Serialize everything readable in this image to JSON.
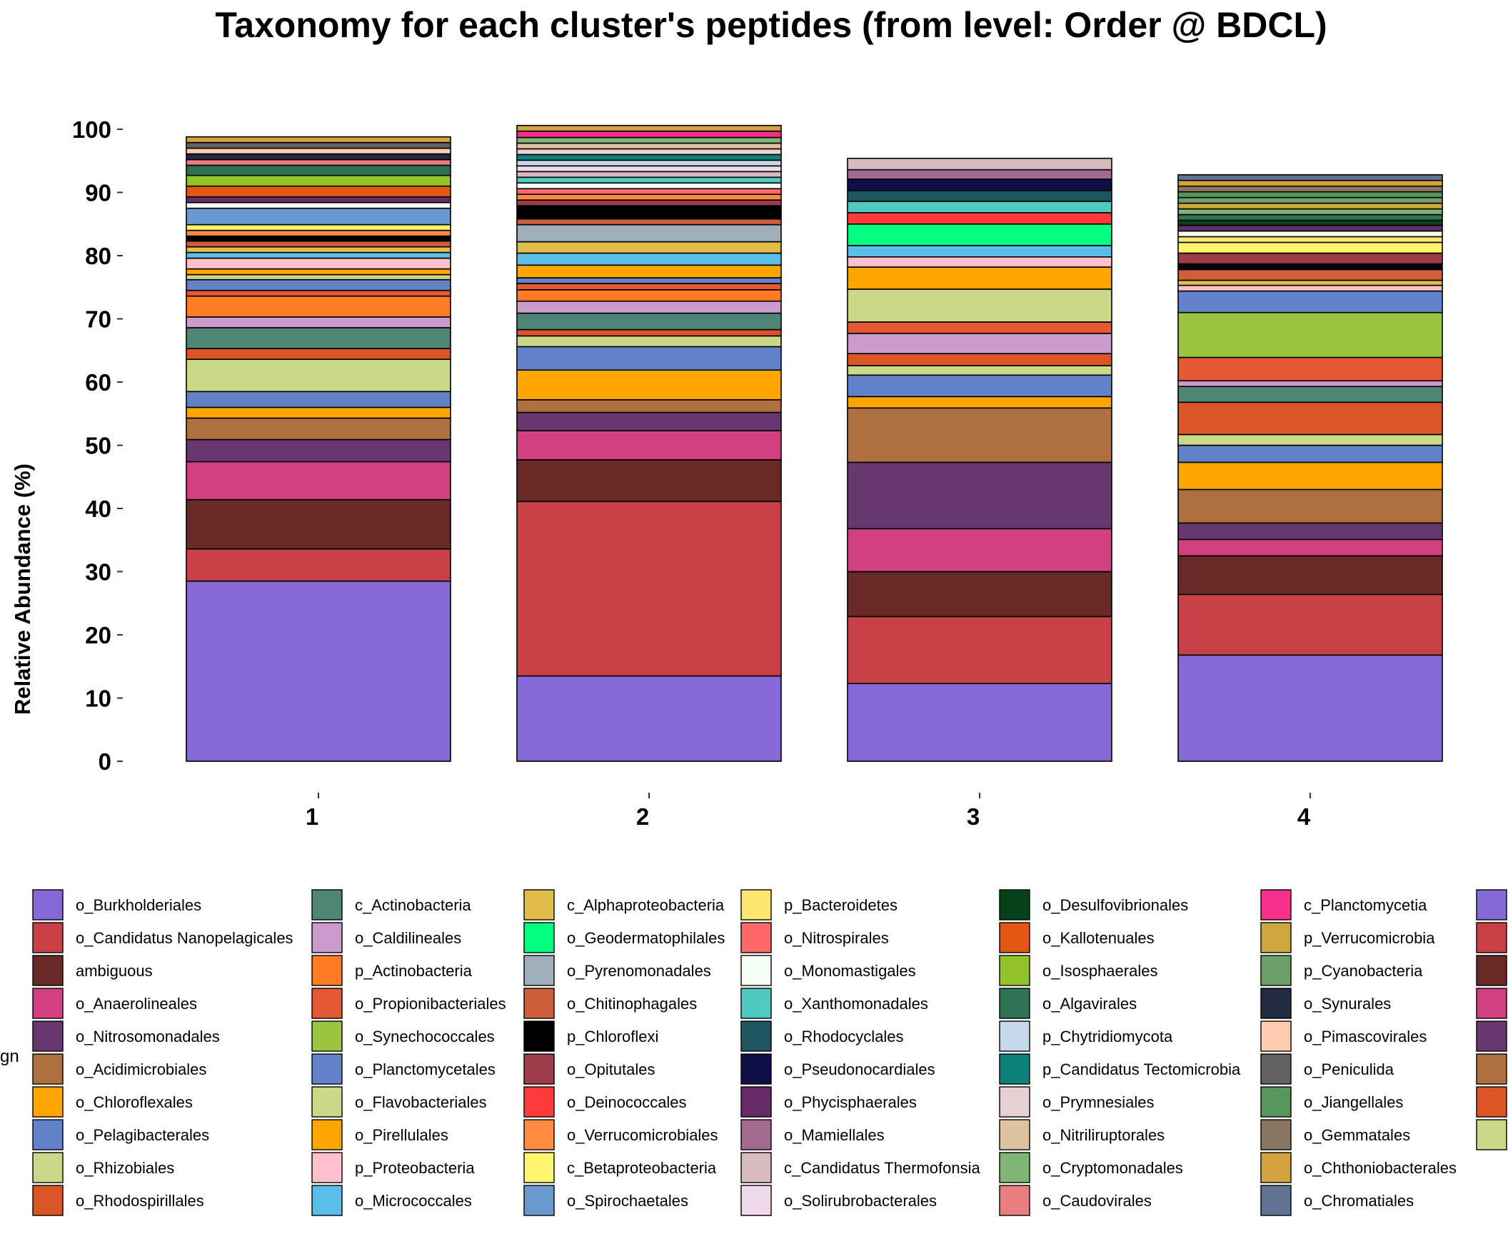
{
  "chart_data": {
    "type": "bar",
    "stacked": true,
    "title": "Taxonomy for each cluster's peptides (from level: Order @ BDCL)",
    "ylabel": "Relative Abundance (%)",
    "xlabel": "",
    "ylim": [
      0,
      100
    ],
    "yticks": [
      "0",
      "10",
      "20",
      "30",
      "40",
      "50",
      "60",
      "70",
      "80",
      "90",
      "100"
    ],
    "categories": [
      "1",
      "2",
      "3",
      "4"
    ],
    "legend_title_fragment": "gn",
    "legend_position": "bottom",
    "legend_labels": [
      "o_Burkholderiales",
      "o_Candidatus Nanopelagicales",
      "ambiguous",
      "o_Anaerolineales",
      "o_Nitrosomonadales",
      "o_Acidimicrobiales",
      "o_Chloroflexales",
      "o_Pelagibacterales",
      "o_Rhizobiales",
      "o_Rhodospirillales",
      "c_Actinobacteria",
      "o_Caldilineales",
      "p_Actinobacteria",
      "o_Propionibacteriales",
      "o_Synechococcales",
      "o_Planctomycetales",
      "o_Flavobacteriales",
      "o_Pirellulales",
      "p_Proteobacteria",
      "o_Micrococcales",
      "c_Alphaproteobacteria",
      "o_Geodermatophilales",
      "o_Pyrenomonadales",
      "o_Chitinophagales",
      "p_Chloroflexi",
      "o_Opitutales",
      "o_Deinococcales",
      "o_Verrucomicrobiales",
      "c_Betaproteobacteria",
      "o_Spirochaetales",
      "p_Bacteroidetes",
      "o_Nitrospirales",
      "o_Monomastigales",
      "o_Xanthomonadales",
      "o_Rhodocyclales",
      "o_Pseudonocardiales",
      "o_Phycisphaerales",
      "o_Mamiellales",
      "c_Candidatus Thermofonsia",
      "o_Solirubrobacterales",
      "o_Desulfovibrionales",
      "o_Kallotenuales",
      "o_Isosphaerales",
      "o_Algavirales",
      "p_Chytridiomycota",
      "p_Candidatus Tectomicrobia",
      "o_Prymnesiales",
      "o_Nitriliruptorales",
      "o_Cryptomonadales",
      "o_Caudovirales",
      "c_Planctomycetia",
      "p_Verrucomicrobia",
      "p_Cyanobacteria",
      "o_Synurales",
      "o_Pimascovirales",
      "o_Peniculida",
      "o_Jiangellales",
      "o_Gemmatales",
      "o_Chthoniobacterales",
      "o_Chromatiales"
    ],
    "legend_colors": [
      "#8669d7",
      "#c94047",
      "#672a27",
      "#d14080",
      "#683770",
      "#ad703e",
      "#ffa500",
      "#6181c9",
      "#cad887",
      "#db5527",
      "#4f8574",
      "#cb9bcd",
      "#ff7c24",
      "#e45934",
      "#9bc53e",
      "#6482c8",
      "#cad887",
      "#ffa500",
      "#ffc0cb",
      "#5bbee8",
      "#e2bc49",
      "#04ff80",
      "#9fafbc",
      "#cd5f3b",
      "#000000",
      "#9f3c49",
      "#ff3a3a",
      "#ff8a42",
      "#fff46e",
      "#6a99cf",
      "#ffe66e",
      "#ff6868",
      "#f5fff5",
      "#4ecac0",
      "#1e5560",
      "#0f0e48",
      "#672b68",
      "#a26a8f",
      "#d7bbbe",
      "#f0d8ee",
      "#054119",
      "#e25714",
      "#93c229",
      "#2f7355",
      "#c6d8e9",
      "#0a827a",
      "#e6d0d3",
      "#dfc29f",
      "#7fb676",
      "#e87e7e",
      "#f52f8a",
      "#cea83f",
      "#6d9f6b",
      "#222b40",
      "#ffccb0",
      "#626262",
      "#57965d",
      "#887660",
      "#d4a23e",
      "#617392"
    ],
    "legend_extra_colors": [
      "#8669d7",
      "#c94047",
      "#672a27",
      "#d14080",
      "#683770",
      "#ad703e",
      "#db5527",
      "#cad887"
    ],
    "series": [
      {
        "name": "o_Burkholderiales",
        "values": [
          28.5,
          13.5,
          12.3,
          16.8
        ]
      },
      {
        "name": "o_Candidatus Nanopelagicales",
        "values": [
          5.1,
          27.6,
          10.6,
          9.6
        ]
      },
      {
        "name": "ambiguous",
        "values": [
          7.8,
          6.6,
          7.1,
          6.1
        ]
      },
      {
        "name": "o_Anaerolineales",
        "values": [
          6.0,
          4.6,
          6.8,
          2.6
        ]
      },
      {
        "name": "o_Nitrosomonadales",
        "values": [
          3.5,
          2.9,
          10.5,
          2.6
        ]
      },
      {
        "name": "o_Acidimicrobiales",
        "values": [
          3.4,
          2.0,
          8.6,
          5.3
        ]
      },
      {
        "name": "o_Chloroflexales",
        "values": [
          1.7,
          4.7,
          1.8,
          4.3
        ]
      },
      {
        "name": "o_Pelagibacterales",
        "values": [
          2.5,
          3.7,
          3.4,
          2.7
        ]
      },
      {
        "name": "o_Rhizobiales",
        "values": [
          5.1,
          1.7,
          1.5,
          1.7
        ]
      },
      {
        "name": "o_Rhodospirillales",
        "values": [
          1.7,
          1.0,
          1.9,
          5.1
        ]
      },
      {
        "name": "c_Actinobacteria",
        "values": [
          3.3,
          2.6,
          0,
          2.5
        ]
      },
      {
        "name": "o_Caldilineales",
        "values": [
          1.7,
          1.9,
          3.2,
          0.9
        ]
      },
      {
        "name": "p_Actinobacteria",
        "values": [
          3.3,
          1.8,
          0,
          0
        ]
      },
      {
        "name": "o_Propionibacteriales",
        "values": [
          0.9,
          1.0,
          1.8,
          3.7
        ]
      },
      {
        "name": "o_Synechococcales",
        "values": [
          0,
          0,
          0,
          7.1
        ]
      },
      {
        "name": "o_Planctomycetales",
        "values": [
          1.7,
          0.9,
          0,
          3.4
        ]
      },
      {
        "name": "o_Flavobacteriales",
        "values": [
          0.8,
          0,
          5.2,
          0
        ]
      },
      {
        "name": "o_Pirellulales",
        "values": [
          0.9,
          2.0,
          3.5,
          0
        ]
      },
      {
        "name": "p_Proteobacteria",
        "values": [
          1.7,
          0,
          1.6,
          0.9
        ]
      },
      {
        "name": "o_Micrococcales",
        "values": [
          0.9,
          1.9,
          1.8,
          0
        ]
      },
      {
        "name": "c_Alphaproteobacteria",
        "values": [
          0.9,
          1.8,
          0,
          0.8
        ]
      },
      {
        "name": "o_Geodermatophilales",
        "values": [
          0,
          0,
          3.4,
          0
        ]
      },
      {
        "name": "o_Pyrenomonadales",
        "values": [
          0,
          2.7,
          0,
          0
        ]
      },
      {
        "name": "o_Chitinophagales",
        "values": [
          0.9,
          0.9,
          0,
          1.7
        ]
      },
      {
        "name": "p_Chloroflexi",
        "values": [
          0.8,
          2.1,
          0,
          0.9
        ]
      },
      {
        "name": "o_Opitutales",
        "values": [
          0,
          0.9,
          0,
          1.7
        ]
      },
      {
        "name": "o_Deinococcales",
        "values": [
          0,
          0,
          1.8,
          0
        ]
      },
      {
        "name": "o_Verrucomicrobiales",
        "values": [
          0.9,
          0.9,
          0,
          0
        ]
      },
      {
        "name": "c_Betaproteobacteria",
        "values": [
          0.9,
          0,
          0,
          1.7
        ]
      },
      {
        "name": "o_Spirochaetales",
        "values": [
          2.6,
          0,
          0,
          0
        ]
      },
      {
        "name": "p_Bacteroidetes",
        "values": [
          0,
          0,
          0,
          0.9
        ]
      },
      {
        "name": "o_Nitrospirales",
        "values": [
          0,
          0.9,
          0,
          0
        ]
      },
      {
        "name": "o_Monomastigales",
        "values": [
          0.9,
          0.9,
          0,
          0.9
        ]
      },
      {
        "name": "o_Xanthomonadales",
        "values": [
          0,
          0.9,
          1.8,
          0
        ]
      },
      {
        "name": "o_Rhodocyclales",
        "values": [
          0,
          0,
          1.7,
          0
        ]
      },
      {
        "name": "o_Pseudonocardiales",
        "values": [
          0,
          0,
          1.8,
          0
        ]
      },
      {
        "name": "o_Phycisphaerales",
        "values": [
          0.9,
          0,
          0,
          0.9
        ]
      },
      {
        "name": "o_Mamiellales",
        "values": [
          0,
          0,
          1.5,
          0
        ]
      },
      {
        "name": "c_Candidatus Thermofonsia",
        "values": [
          0,
          0.9,
          1.8,
          0
        ]
      },
      {
        "name": "o_Solirubrobacterales",
        "values": [
          0,
          0.9,
          0,
          0
        ]
      },
      {
        "name": "o_Desulfovibrionales",
        "values": [
          0,
          0,
          0,
          0.8
        ]
      },
      {
        "name": "o_Kallotenuales",
        "values": [
          1.7,
          0,
          0,
          0
        ]
      },
      {
        "name": "o_Isosphaerales",
        "values": [
          1.7,
          0,
          0,
          0
        ]
      },
      {
        "name": "o_Algavirales",
        "values": [
          1.6,
          0,
          0,
          0.9
        ]
      },
      {
        "name": "p_Chytridiomycota",
        "values": [
          0,
          0.9,
          0,
          0
        ]
      },
      {
        "name": "p_Candidatus Tectomicrobia",
        "values": [
          0,
          0.9,
          0,
          0
        ]
      },
      {
        "name": "o_Prymnesiales",
        "values": [
          0,
          0.9,
          0,
          0
        ]
      },
      {
        "name": "o_Nitriliruptorales",
        "values": [
          0,
          0.9,
          0,
          0
        ]
      },
      {
        "name": "o_Cryptomonadales",
        "values": [
          0,
          0.9,
          0,
          0.9
        ]
      },
      {
        "name": "o_Caudovirales",
        "values": [
          0.9,
          0,
          0,
          0
        ]
      },
      {
        "name": "c_Planctomycetia",
        "values": [
          0,
          1.0,
          0,
          0
        ]
      },
      {
        "name": "p_Verrucomicrobia",
        "values": [
          0,
          0,
          0,
          0.9
        ]
      },
      {
        "name": "p_Cyanobacteria",
        "values": [
          0,
          0,
          0,
          0.9
        ]
      },
      {
        "name": "o_Synurales",
        "values": [
          0.9,
          0,
          0,
          0
        ]
      },
      {
        "name": "o_Pimascovirales",
        "values": [
          0.9,
          0,
          0,
          0
        ]
      },
      {
        "name": "o_Peniculida",
        "values": [
          0.9,
          0,
          0,
          0
        ]
      },
      {
        "name": "o_Jiangellales",
        "values": [
          0,
          0,
          0,
          0.9
        ]
      },
      {
        "name": "o_Gemmatales",
        "values": [
          0,
          0,
          0,
          0.9
        ]
      },
      {
        "name": "o_Chthoniobacterales",
        "values": [
          0.9,
          0.9,
          0,
          0.9
        ]
      },
      {
        "name": "o_Chromatiales",
        "values": [
          0,
          0,
          0,
          0.9
        ]
      }
    ]
  }
}
